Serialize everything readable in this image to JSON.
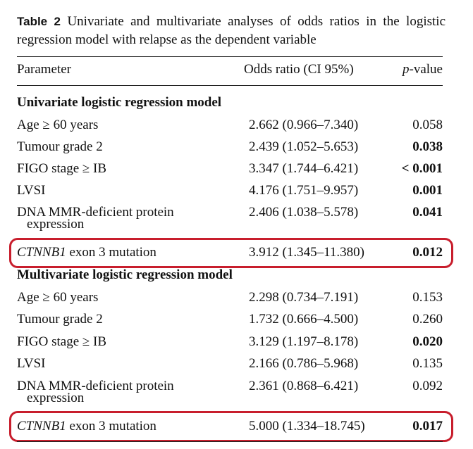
{
  "caption": {
    "label": "Table 2",
    "text": "Univariate and multivariate analyses of odds ratios in the logistic regression model with relapse as the dependent variable"
  },
  "header": {
    "parameter": "Parameter",
    "odds": "Odds ratio (CI 95%)",
    "p_italic": "p",
    "p_rest": "-value"
  },
  "univariate": {
    "title": "Univariate logistic regression model",
    "rows": [
      {
        "parameter": "Age ≥ 60 years",
        "odds": "2.662 (0.966–7.340)",
        "p": "0.058"
      },
      {
        "parameter": "Tumour grade 2",
        "odds": "2.439 (1.052–5.653)",
        "p": "0.038"
      },
      {
        "parameter": "FIGO stage ≥ IB",
        "odds": "3.347 (1.744–6.421)",
        "p": "< 0.001"
      },
      {
        "parameter": "LVSI",
        "odds": "4.176 (1.751–9.957)",
        "p": "0.001"
      },
      {
        "parameter": "DNA MMR-deficient protein",
        "parameter_line2": "expression",
        "odds": "2.406 (1.038–5.578)",
        "p": "0.041"
      },
      {
        "parameter_gene": "CTNNB1",
        "parameter": " exon 3 mutation",
        "odds": "3.912 (1.345–11.380)",
        "p": "0.012"
      }
    ]
  },
  "multivariate": {
    "title": "Multivariate logistic regression model",
    "rows": [
      {
        "parameter": "Age ≥ 60 years",
        "odds": "2.298 (0.734–7.191)",
        "p": "0.153"
      },
      {
        "parameter": "Tumour grade 2",
        "odds": "1.732 (0.666–4.500)",
        "p": "0.260"
      },
      {
        "parameter": "FIGO stage ≥ IB",
        "odds": "3.129 (1.197–8.178)",
        "p": "0.020"
      },
      {
        "parameter": "LVSI",
        "odds": "2.166 (0.786–5.968)",
        "p": "0.135"
      },
      {
        "parameter": "DNA MMR-deficient protein",
        "parameter_line2": "expression",
        "odds": "2.361 (0.868–6.421)",
        "p": "0.092"
      },
      {
        "parameter_gene": "CTNNB1",
        "parameter": " exon 3 mutation",
        "odds": "5.000 (1.334–18.745)",
        "p": "0.017"
      }
    ]
  },
  "colors": {
    "highlight": "#c81e2d"
  }
}
